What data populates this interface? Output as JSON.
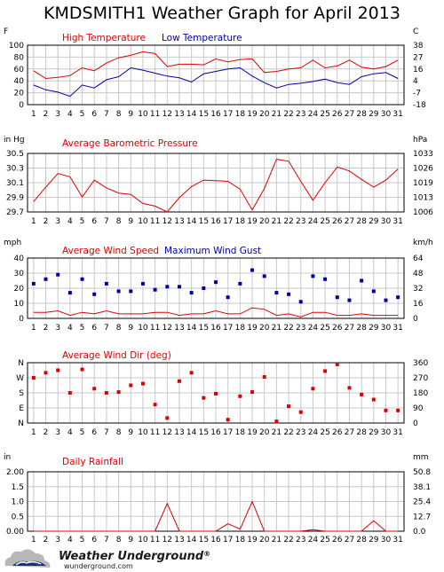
{
  "title": "KMDSMITH1 Weather Graph for April 2013",
  "brand": {
    "name": "Weather Underground",
    "mark": "®",
    "url": "wunderground.com"
  },
  "colors": {
    "red": "#dd0000",
    "blue": "#0000aa",
    "grid": "#c8c8c8",
    "frame": "#000000"
  },
  "chart_data": [
    {
      "type": "line",
      "left_unit": "F",
      "right_unit": "C",
      "x": [
        1,
        2,
        3,
        4,
        5,
        6,
        7,
        8,
        9,
        10,
        11,
        12,
        13,
        14,
        15,
        16,
        17,
        18,
        19,
        20,
        21,
        22,
        23,
        24,
        25,
        26,
        27,
        28,
        29,
        30,
        31
      ],
      "ylim": [
        0,
        100
      ],
      "left_ticks": [
        "100",
        "80",
        "60",
        "40",
        "20",
        "0"
      ],
      "right_ticks": [
        "38",
        "27",
        "16",
        "4",
        "-7",
        "-18"
      ],
      "series": [
        {
          "name": "High Temperature",
          "color": "#dd0000",
          "values": [
            57,
            44,
            46,
            49,
            62,
            57,
            70,
            79,
            83,
            89,
            86,
            64,
            68,
            68,
            67,
            77,
            72,
            76,
            77,
            54,
            56,
            60,
            62,
            75,
            62,
            65,
            75,
            63,
            60,
            64,
            75
          ]
        },
        {
          "name": "Low Temperature",
          "color": "#0000aa",
          "values": [
            33,
            25,
            21,
            14,
            33,
            28,
            42,
            47,
            62,
            58,
            53,
            48,
            45,
            38,
            52,
            56,
            60,
            62,
            48,
            37,
            28,
            34,
            36,
            39,
            43,
            37,
            34,
            47,
            52,
            54,
            44
          ]
        }
      ]
    },
    {
      "type": "line",
      "left_unit": "in Hg",
      "right_unit": "hPa",
      "x": [
        1,
        2,
        3,
        4,
        5,
        6,
        7,
        8,
        9,
        10,
        11,
        12,
        13,
        14,
        15,
        16,
        17,
        18,
        19,
        20,
        21,
        22,
        23,
        24,
        25,
        26,
        27,
        28,
        29,
        30,
        31
      ],
      "ylim": [
        29.7,
        30.6
      ],
      "left_ticks": [
        "30.5",
        "30.3",
        "30.1",
        "29.9",
        "29.7"
      ],
      "right_ticks": [
        "1033",
        "1026",
        "1019",
        "1013",
        "1006"
      ],
      "series": [
        {
          "name": "Average Barometric Pressure",
          "color": "#dd0000",
          "values": [
            29.86,
            30.08,
            30.29,
            30.24,
            29.93,
            30.19,
            30.07,
            29.99,
            29.97,
            29.83,
            29.79,
            29.7,
            29.92,
            30.09,
            30.19,
            30.18,
            30.17,
            30.05,
            29.73,
            30.06,
            30.51,
            30.48,
            30.17,
            29.88,
            30.15,
            30.39,
            30.33,
            30.2,
            30.08,
            30.19,
            30.36
          ]
        }
      ]
    },
    {
      "type": "scatter",
      "left_unit": "mph",
      "right_unit": "km/h",
      "x": [
        1,
        2,
        3,
        4,
        5,
        6,
        7,
        8,
        9,
        10,
        11,
        12,
        13,
        14,
        15,
        16,
        17,
        18,
        19,
        20,
        21,
        22,
        23,
        24,
        25,
        26,
        27,
        28,
        29,
        30,
        31
      ],
      "ylim": [
        0,
        40
      ],
      "left_ticks": [
        "40",
        "30",
        "20",
        "10",
        "0"
      ],
      "right_ticks": [
        "64",
        "48",
        "32",
        "16",
        "0"
      ],
      "series": [
        {
          "name": "Average Wind Speed",
          "color": "#dd0000",
          "style": "line",
          "values": [
            4,
            4,
            5,
            2,
            4,
            3,
            5,
            3,
            3,
            3,
            4,
            4,
            2,
            3,
            3,
            5,
            3,
            3,
            7,
            6,
            2,
            3,
            1,
            4,
            4,
            2,
            2,
            3,
            2,
            2,
            2
          ]
        },
        {
          "name": "Maximum Wind Gust",
          "color": "#0000aa",
          "style": "points",
          "values": [
            23,
            26,
            29,
            17,
            26,
            16,
            23,
            18,
            18,
            23,
            19,
            21,
            21,
            17,
            20,
            24,
            14,
            23,
            32,
            28,
            17,
            16,
            11,
            28,
            26,
            14,
            12,
            25,
            18,
            12,
            14
          ]
        }
      ]
    },
    {
      "type": "scatter",
      "left_unit": "",
      "right_unit": "",
      "x": [
        1,
        2,
        3,
        4,
        5,
        6,
        7,
        8,
        9,
        10,
        11,
        12,
        13,
        14,
        15,
        16,
        17,
        18,
        19,
        20,
        21,
        22,
        23,
        24,
        25,
        26,
        27,
        28,
        29,
        30,
        31
      ],
      "ylim": [
        0,
        360
      ],
      "left_ticks": [
        "N",
        "W",
        "S",
        "E",
        "N"
      ],
      "right_ticks": [
        "360",
        "270",
        "180",
        "90",
        "0"
      ],
      "series": [
        {
          "name": "Average Wind Dir (deg)",
          "color": "#dd0000",
          "style": "points",
          "values": [
            270,
            300,
            315,
            180,
            320,
            205,
            180,
            185,
            225,
            235,
            110,
            30,
            250,
            300,
            150,
            175,
            20,
            160,
            185,
            275,
            10,
            100,
            65,
            205,
            310,
            350,
            210,
            170,
            140,
            75,
            75
          ]
        }
      ]
    },
    {
      "type": "line",
      "left_unit": "in",
      "right_unit": "mm",
      "x": [
        1,
        2,
        3,
        4,
        5,
        6,
        7,
        8,
        9,
        10,
        11,
        12,
        13,
        14,
        15,
        16,
        17,
        18,
        19,
        20,
        21,
        22,
        23,
        24,
        25,
        26,
        27,
        28,
        29,
        30,
        31
      ],
      "ylim": [
        0,
        2.0
      ],
      "left_ticks": [
        "2.00",
        "1.5",
        "1.0",
        "0.5",
        "0.00"
      ],
      "right_ticks": [
        "50.8",
        "38.1",
        "25.4",
        "12.7",
        "0.0"
      ],
      "series": [
        {
          "name": "Daily Rainfall",
          "color": "#dd0000",
          "values": [
            0,
            0,
            0,
            0,
            0,
            0,
            0,
            0,
            0,
            0,
            0,
            0.93,
            0,
            0,
            0,
            0,
            0.25,
            0.07,
            1.0,
            0,
            0,
            0,
            0,
            0.05,
            0,
            0,
            0,
            0,
            0.35,
            0,
            0
          ]
        }
      ]
    }
  ]
}
